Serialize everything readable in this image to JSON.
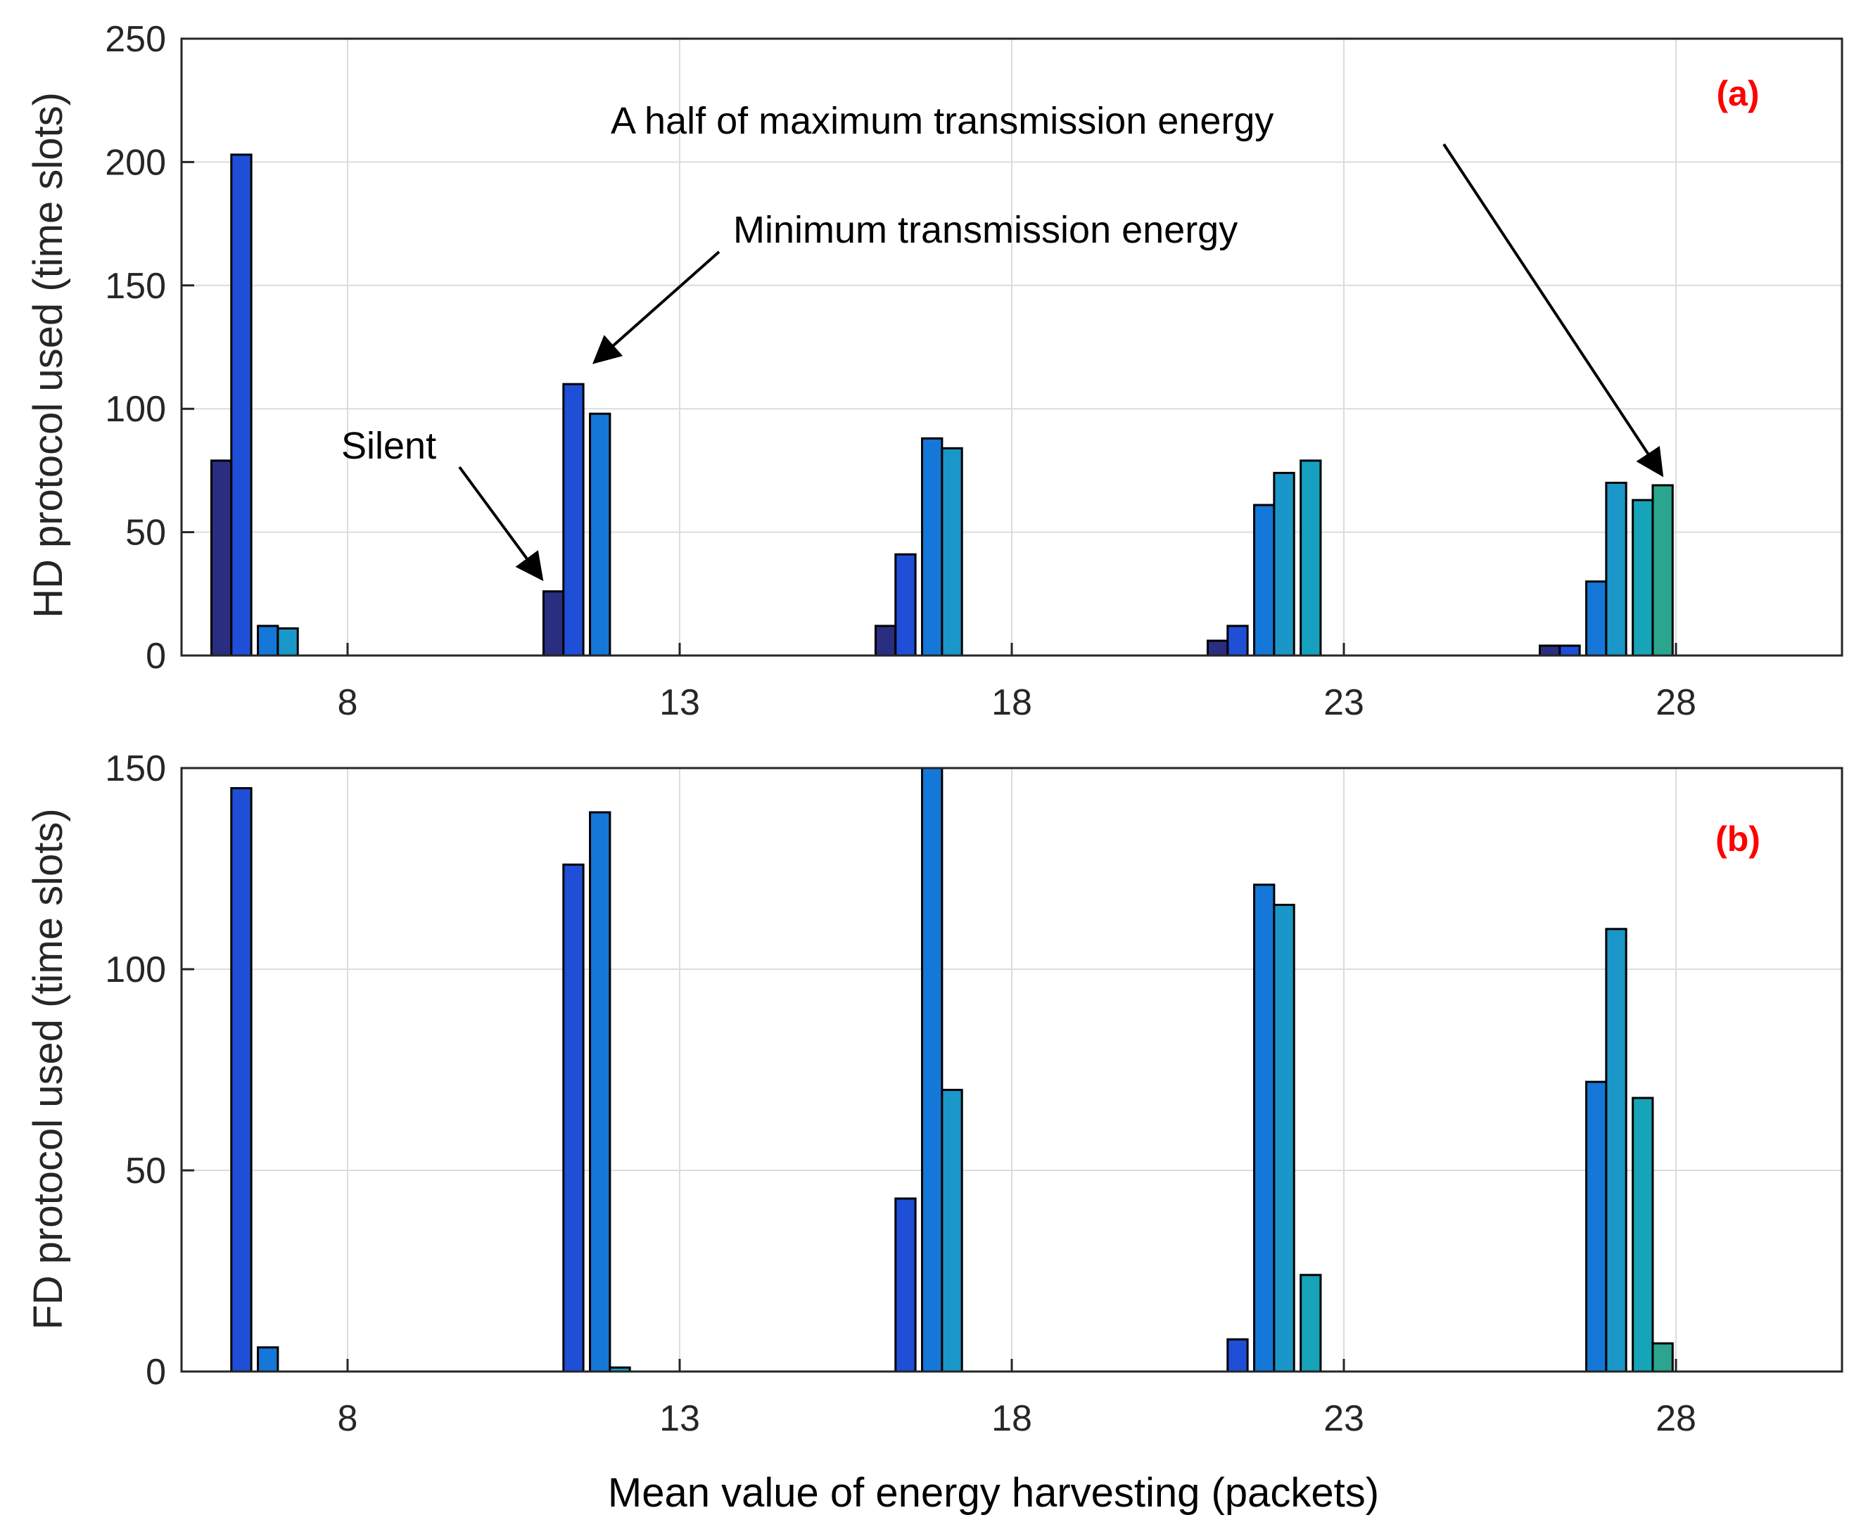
{
  "chart_data": [
    {
      "type": "bar",
      "panel_label": "(a)",
      "panel_label_color": "#ff0000",
      "ylabel": "HD protocol used (time slots)",
      "xlabel": "",
      "x_tick_labels": [
        "8",
        "13",
        "18",
        "23",
        "28"
      ],
      "xlim": [
        5.5,
        30.5
      ],
      "ylim": [
        0,
        250
      ],
      "y_ticks": [
        0,
        50,
        100,
        150,
        200,
        250
      ],
      "grid": true,
      "bars": [
        {
          "x": 6.1,
          "value": 79,
          "color": "#2a2e80"
        },
        {
          "x": 6.4,
          "value": 203,
          "color": "#1f4fd6"
        },
        {
          "x": 6.8,
          "value": 12,
          "color": "#1577d8"
        },
        {
          "x": 7.1,
          "value": 11,
          "color": "#1a97c8"
        },
        {
          "x": 11.1,
          "value": 26,
          "color": "#2a2e80"
        },
        {
          "x": 11.4,
          "value": 110,
          "color": "#1f4fd6"
        },
        {
          "x": 11.8,
          "value": 98,
          "color": "#1577d8"
        },
        {
          "x": 16.1,
          "value": 12,
          "color": "#2a2e80"
        },
        {
          "x": 16.4,
          "value": 41,
          "color": "#1f4fd6"
        },
        {
          "x": 16.8,
          "value": 88,
          "color": "#1577d8"
        },
        {
          "x": 17.1,
          "value": 84,
          "color": "#1a97c8"
        },
        {
          "x": 21.1,
          "value": 6,
          "color": "#2a2e80"
        },
        {
          "x": 21.4,
          "value": 12,
          "color": "#1f4fd6"
        },
        {
          "x": 21.8,
          "value": 61,
          "color": "#1577d8"
        },
        {
          "x": 22.1,
          "value": 74,
          "color": "#1a97c8"
        },
        {
          "x": 22.5,
          "value": 79,
          "color": "#15a0c0"
        },
        {
          "x": 26.1,
          "value": 4,
          "color": "#2a2e80"
        },
        {
          "x": 26.4,
          "value": 4,
          "color": "#1f4fd6"
        },
        {
          "x": 26.8,
          "value": 30,
          "color": "#1577d8"
        },
        {
          "x": 27.1,
          "value": 70,
          "color": "#1a97c8"
        },
        {
          "x": 27.5,
          "value": 63,
          "color": "#17a3b8"
        },
        {
          "x": 27.8,
          "value": 69,
          "color": "#2ca58f"
        }
      ],
      "annotations": [
        {
          "text": "Silent",
          "target": [
            11.1,
            26
          ]
        },
        {
          "text": "Minimum transmission energy",
          "target": [
            11.4,
            110
          ]
        },
        {
          "text": "A half of maximum transmission energy",
          "target": [
            27.8,
            69
          ]
        }
      ]
    },
    {
      "type": "bar",
      "panel_label": "(b)",
      "panel_label_color": "#ff0000",
      "ylabel": "FD protocol used (time slots)",
      "xlabel": "Mean value of energy harvesting (packets)",
      "x_tick_labels": [
        "8",
        "13",
        "18",
        "23",
        "28"
      ],
      "xlim": [
        5.5,
        30.5
      ],
      "ylim": [
        0,
        150
      ],
      "y_ticks": [
        0,
        50,
        100,
        150
      ],
      "grid": true,
      "bars": [
        {
          "x": 6.4,
          "value": 145,
          "color": "#1f4fd6"
        },
        {
          "x": 6.8,
          "value": 6,
          "color": "#1577d8"
        },
        {
          "x": 11.4,
          "value": 126,
          "color": "#1f4fd6"
        },
        {
          "x": 11.8,
          "value": 139,
          "color": "#1577d8"
        },
        {
          "x": 12.1,
          "value": 1,
          "color": "#1a97c8"
        },
        {
          "x": 16.4,
          "value": 43,
          "color": "#1f4fd6"
        },
        {
          "x": 16.8,
          "value": 150,
          "color": "#1577d8"
        },
        {
          "x": 17.1,
          "value": 70,
          "color": "#1a97c8"
        },
        {
          "x": 21.4,
          "value": 8,
          "color": "#1f4fd6"
        },
        {
          "x": 21.8,
          "value": 121,
          "color": "#1577d8"
        },
        {
          "x": 22.1,
          "value": 116,
          "color": "#1a97c8"
        },
        {
          "x": 22.5,
          "value": 24,
          "color": "#17a3b8"
        },
        {
          "x": 26.8,
          "value": 72,
          "color": "#1577d8"
        },
        {
          "x": 27.1,
          "value": 110,
          "color": "#1a97c8"
        },
        {
          "x": 27.5,
          "value": 68,
          "color": "#17a3b8"
        },
        {
          "x": 27.8,
          "value": 7,
          "color": "#2ca58f"
        }
      ],
      "annotations": []
    }
  ]
}
